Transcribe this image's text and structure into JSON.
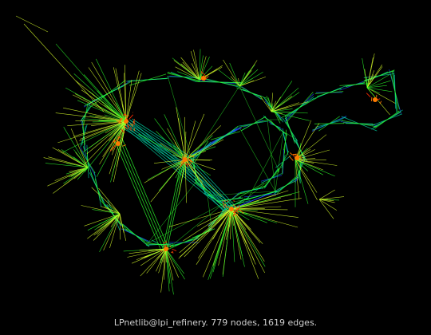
{
  "caption": "LPnetlib@lpi_refinery. 779 nodes, 1619 edges.",
  "colors": {
    "background": "#000000",
    "edge_long": "#1f4bff",
    "edge_mid": "#00d6a8",
    "edge_short": "#2cff2c",
    "edge_leaf": "#d9ff2a",
    "hub": "#ff7a00",
    "hub_core": "#ff2a00",
    "caption": "#cfcfcf"
  }
}
